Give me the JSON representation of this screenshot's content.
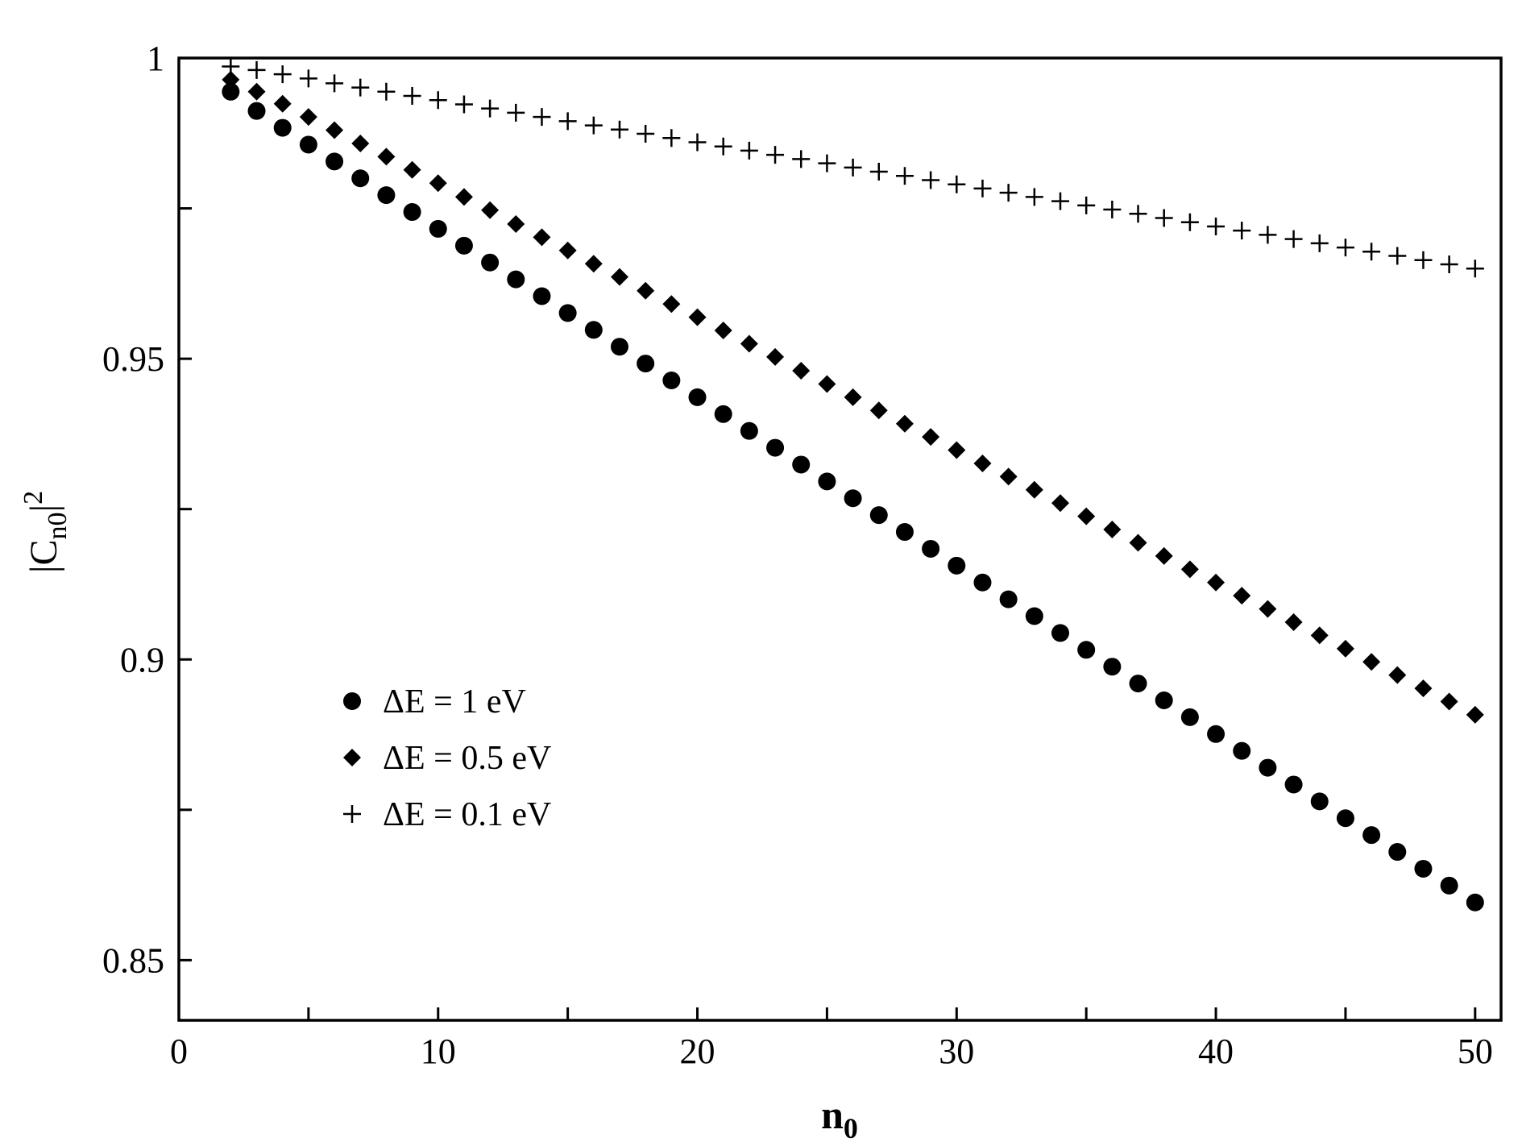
{
  "chart_data": {
    "type": "scatter",
    "xlabel": {
      "main": "n",
      "sub": "0"
    },
    "ylabel": {
      "pre": "|C",
      "sub": "n0",
      "post": "|",
      "sup": "2"
    },
    "xlim": [
      0,
      51
    ],
    "ylim": [
      0.84,
      1.0
    ],
    "xticks": [
      0,
      5,
      10,
      15,
      20,
      25,
      30,
      35,
      40,
      45,
      50
    ],
    "xtick_labels": [
      "0",
      "",
      "10",
      "",
      "20",
      "",
      "30",
      "",
      "40",
      "",
      "50"
    ],
    "yticks": [
      0.85,
      0.875,
      0.9,
      0.925,
      0.95,
      0.975,
      1.0
    ],
    "ytick_labels": [
      "0.85",
      "",
      "0.9",
      "",
      "0.95",
      "",
      "1"
    ],
    "grid": false,
    "legend_position": "lower-left",
    "x": [
      2,
      3,
      4,
      5,
      6,
      7,
      8,
      9,
      10,
      11,
      12,
      13,
      14,
      15,
      16,
      17,
      18,
      19,
      20,
      21,
      22,
      23,
      24,
      25,
      26,
      27,
      28,
      29,
      30,
      31,
      32,
      33,
      34,
      35,
      36,
      37,
      38,
      39,
      40,
      41,
      42,
      43,
      44,
      45,
      46,
      47,
      48,
      49,
      50
    ],
    "series": [
      {
        "name": "ΔE = 1 eV",
        "marker": "circle",
        "values": [
          0.9944,
          0.9912,
          0.9884,
          0.9856,
          0.9828,
          0.98,
          0.9772,
          0.9744,
          0.9716,
          0.9688,
          0.966,
          0.9632,
          0.9604,
          0.9576,
          0.9548,
          0.952,
          0.9492,
          0.9464,
          0.9436,
          0.9408,
          0.938,
          0.9352,
          0.9324,
          0.9296,
          0.9268,
          0.924,
          0.9212,
          0.9184,
          0.9156,
          0.9128,
          0.91,
          0.9072,
          0.9044,
          0.9016,
          0.8988,
          0.896,
          0.8932,
          0.8904,
          0.8876,
          0.8848,
          0.882,
          0.8792,
          0.8764,
          0.8736,
          0.8708,
          0.868,
          0.8652,
          0.8624,
          0.8596
        ]
      },
      {
        "name": "ΔE = 0.5 eV",
        "marker": "diamond",
        "values": [
          0.9964,
          0.9944,
          0.9924,
          0.9902,
          0.988,
          0.9858,
          0.9836,
          0.9814,
          0.9792,
          0.9769,
          0.9747,
          0.9724,
          0.9702,
          0.968,
          0.9658,
          0.9636,
          0.9613,
          0.9591,
          0.9569,
          0.9547,
          0.9525,
          0.9503,
          0.948,
          0.9458,
          0.9436,
          0.9414,
          0.9392,
          0.937,
          0.9348,
          0.9326,
          0.9304,
          0.9282,
          0.926,
          0.9238,
          0.9216,
          0.9194,
          0.9172,
          0.915,
          0.9128,
          0.9106,
          0.9084,
          0.9062,
          0.904,
          0.9018,
          0.8996,
          0.8974,
          0.8952,
          0.893,
          0.8908
        ]
      },
      {
        "name": "ΔE = 0.1 eV",
        "marker": "plus",
        "values": [
          0.9986,
          0.998,
          0.9973,
          0.9966,
          0.9958,
          0.9951,
          0.9944,
          0.9937,
          0.993,
          0.9923,
          0.9916,
          0.9909,
          0.9902,
          0.9895,
          0.9888,
          0.9881,
          0.9874,
          0.9867,
          0.986,
          0.9853,
          0.9846,
          0.9839,
          0.9832,
          0.9825,
          0.9818,
          0.9811,
          0.9804,
          0.9797,
          0.979,
          0.9783,
          0.9776,
          0.9769,
          0.9762,
          0.9755,
          0.9748,
          0.9741,
          0.9734,
          0.9727,
          0.972,
          0.9713,
          0.9706,
          0.9699,
          0.9692,
          0.9685,
          0.9678,
          0.9671,
          0.9664,
          0.9657,
          0.965
        ]
      }
    ]
  }
}
